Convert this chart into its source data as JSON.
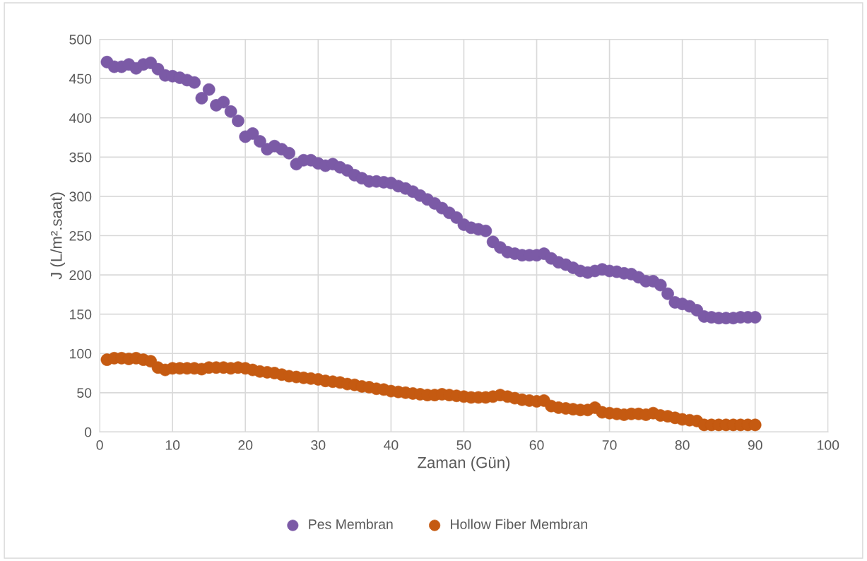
{
  "chart_data": {
    "type": "scatter",
    "xlabel": "Zaman (Gün)",
    "ylabel": "J (L/m².saat)",
    "x": [
      1,
      2,
      3,
      4,
      5,
      6,
      7,
      8,
      9,
      10,
      11,
      12,
      13,
      14,
      15,
      16,
      17,
      18,
      19,
      20,
      21,
      22,
      23,
      24,
      25,
      26,
      27,
      28,
      29,
      30,
      31,
      32,
      33,
      34,
      35,
      36,
      37,
      38,
      39,
      40,
      41,
      42,
      43,
      44,
      45,
      46,
      47,
      48,
      49,
      50,
      51,
      52,
      53,
      54,
      55,
      56,
      57,
      58,
      59,
      60,
      61,
      62,
      63,
      64,
      65,
      66,
      67,
      68,
      69,
      70,
      71,
      72,
      73,
      74,
      75,
      76,
      77,
      78,
      79,
      80,
      81,
      82,
      83,
      84,
      85,
      86,
      87,
      88,
      89,
      90
    ],
    "series": [
      {
        "name": "Pes Membran",
        "color": "#7b5aa6",
        "values": [
          471,
          465,
          465,
          468,
          463,
          468,
          470,
          462,
          454,
          453,
          451,
          448,
          445,
          425,
          436,
          416,
          420,
          408,
          396,
          376,
          380,
          370,
          360,
          364,
          360,
          355,
          341,
          346,
          346,
          342,
          339,
          341,
          337,
          333,
          327,
          323,
          319,
          319,
          318,
          317,
          313,
          310,
          306,
          301,
          296,
          291,
          285,
          279,
          273,
          264,
          260,
          258,
          256,
          242,
          235,
          229,
          227,
          225,
          225,
          225,
          227,
          221,
          216,
          213,
          209,
          205,
          203,
          205,
          207,
          205,
          204,
          202,
          201,
          197,
          192,
          192,
          187,
          176,
          165,
          163,
          160,
          155,
          147,
          146,
          145,
          145,
          145,
          146,
          146,
          146
        ]
      },
      {
        "name": "Hollow Fiber Membran",
        "color": "#c55a11",
        "values": [
          92,
          94,
          94,
          93,
          94,
          92,
          90,
          82,
          79,
          81,
          81,
          81,
          81,
          80,
          82,
          82,
          82,
          81,
          82,
          81,
          79,
          77,
          76,
          75,
          73,
          71,
          70,
          69,
          68,
          67,
          65,
          64,
          63,
          61,
          60,
          58,
          57,
          55,
          54,
          52,
          51,
          50,
          49,
          48,
          47,
          47,
          48,
          47,
          46,
          45,
          44,
          44,
          44,
          45,
          47,
          45,
          43,
          41,
          40,
          39,
          40,
          33,
          31,
          30,
          29,
          28,
          28,
          31,
          25,
          24,
          23,
          22,
          23,
          23,
          22,
          24,
          21,
          20,
          18,
          16,
          15,
          14,
          9,
          9,
          9,
          9,
          9,
          9,
          9,
          9
        ]
      }
    ],
    "xlim": [
      0,
      100
    ],
    "xticks": [
      0,
      10,
      20,
      30,
      40,
      50,
      60,
      70,
      80,
      90,
      100
    ],
    "ylim": [
      0,
      500
    ],
    "yticks": [
      0,
      50,
      100,
      150,
      200,
      250,
      300,
      350,
      400,
      450,
      500
    ],
    "grid": true,
    "legend": "bottom",
    "marker": "circle"
  }
}
